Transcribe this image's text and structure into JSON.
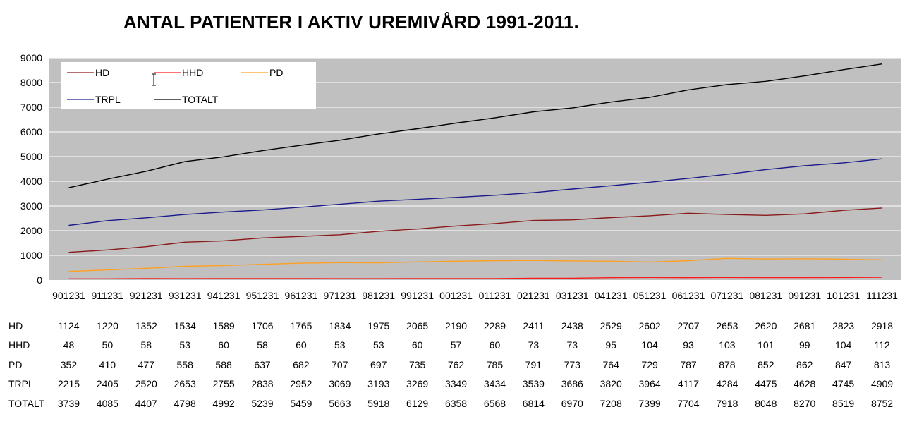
{
  "chart_data": {
    "type": "line",
    "title": "ANTAL PATIENTER I AKTIV UREMIVÅRD 1991-2011.",
    "xlabel": "",
    "ylabel": "",
    "categories": [
      "901231",
      "911231",
      "921231",
      "931231",
      "941231",
      "951231",
      "961231",
      "971231",
      "981231",
      "991231",
      "001231",
      "011231",
      "021231",
      "031231",
      "041231",
      "051231",
      "061231",
      "071231",
      "081231",
      "091231",
      "101231",
      "111231"
    ],
    "ylim": [
      0,
      9000
    ],
    "yticks": [
      0,
      1000,
      2000,
      3000,
      4000,
      5000,
      6000,
      7000,
      8000,
      9000
    ],
    "grid": true,
    "legend_position": "top-left",
    "plot_background": "#c0c0c0",
    "series": [
      {
        "name": "HD",
        "color": "#8b1a1a",
        "values": [
          1124,
          1220,
          1352,
          1534,
          1589,
          1706,
          1765,
          1834,
          1975,
          2065,
          2190,
          2289,
          2411,
          2438,
          2529,
          2602,
          2707,
          2653,
          2620,
          2681,
          2823,
          2918
        ]
      },
      {
        "name": "HHD",
        "color": "#ff1a1a",
        "values": [
          48,
          50,
          58,
          53,
          60,
          58,
          60,
          53,
          53,
          60,
          57,
          60,
          73,
          73,
          95,
          104,
          93,
          103,
          101,
          99,
          104,
          112
        ]
      },
      {
        "name": "PD",
        "color": "#ffa020",
        "values": [
          352,
          410,
          477,
          558,
          588,
          637,
          682,
          707,
          697,
          735,
          762,
          785,
          791,
          773,
          764,
          729,
          787,
          878,
          852,
          862,
          847,
          813
        ]
      },
      {
        "name": "TRPL",
        "color": "#1a1a8b",
        "values": [
          2215,
          2405,
          2520,
          2653,
          2755,
          2838,
          2952,
          3069,
          3193,
          3269,
          3349,
          3434,
          3539,
          3686,
          3820,
          3964,
          4117,
          4284,
          4475,
          4628,
          4745,
          4909
        ]
      },
      {
        "name": "TOTALT",
        "color": "#000000",
        "values": [
          3739,
          4085,
          4407,
          4798,
          4992,
          5239,
          5459,
          5663,
          5918,
          6129,
          6358,
          6568,
          6814,
          6970,
          7208,
          7399,
          7704,
          7918,
          8048,
          8270,
          8519,
          8752
        ]
      }
    ]
  }
}
